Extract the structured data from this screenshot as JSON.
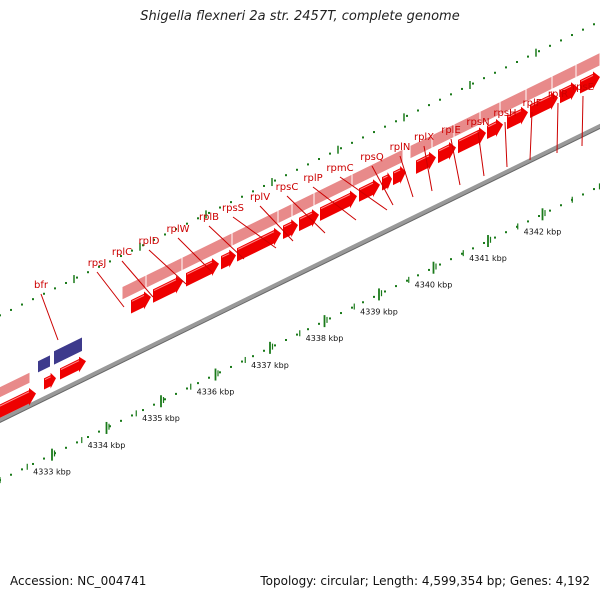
{
  "title": "Shigella flexneri 2a str. 2457T, complete genome",
  "footer": {
    "accession": "Accession: NC_004741",
    "summary": "Topology: circular; Length: 4,599,354 bp; Genes: 4,192"
  },
  "colors": {
    "gene": "#ee0000",
    "gene_light": "#e88a8a",
    "other_feature": "#3d3a8c",
    "tick": "#1a7a1a",
    "leader": "#cc0000",
    "backbone": "#999999"
  },
  "gene_labels": [
    "bfr",
    "rpsJ",
    "rplC",
    "rplD",
    "rplW",
    "rplB",
    "rpsS",
    "rplV",
    "rpsC",
    "rplP",
    "rpmC",
    "rpsQ",
    "rplN",
    "rplX",
    "rplE",
    "rpsN",
    "rpsH",
    "rplF",
    "rplR",
    "rpsE"
  ],
  "scale_labels": [
    "4333 kbp",
    "4334 kbp",
    "4335 kbp",
    "4336 kbp",
    "4337 kbp",
    "4338 kbp",
    "4339 kbp",
    "4340 kbp",
    "4341 kbp",
    "4342 kbp"
  ]
}
